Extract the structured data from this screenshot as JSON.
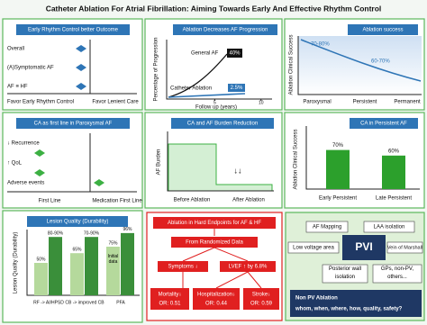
{
  "title": "Catheter Ablation For Atrial Fibrillation: Aiming Towards Early And Effective Rhythm Control",
  "early_rhythm": {
    "title": "Early Rhythm Control better Outcome",
    "rows": [
      "Overall",
      "(A)Symptomatic AF",
      "AF ≡ HF"
    ],
    "left": "Favor Early Rhythm Control",
    "right": "Favor Lenient Care"
  },
  "progression": {
    "title": "Ablation Decreases AF Progression",
    "ylabel": "Percentage of Progression",
    "xlabel": "Follow up (years)",
    "xticks": [
      5,
      10
    ],
    "xlim": [
      0,
      11
    ],
    "general": {
      "name": "General AF",
      "label": "40%"
    },
    "ablation": {
      "name": "Catheter Ablation",
      "label": "2.5%"
    }
  },
  "success": {
    "title": "Ablation success",
    "ylabel": "Ablation Clinical Success",
    "labels": [
      "70-80%",
      "60-70%"
    ],
    "categories": [
      "Paroxysmal",
      "Persistent",
      "Permanent"
    ]
  },
  "first_line": {
    "title": "CA as first line in Paroxysmal AF",
    "rows": [
      "↓ Recurrence",
      "↑ QoL",
      "Adverse events"
    ],
    "left": "First Line",
    "right": "Medication First Line"
  },
  "burden": {
    "title": "CA and AF Burden Reduction",
    "ylabel": "AF Burden",
    "note": "↓↓",
    "categories": [
      "Before Ablation",
      "After Ablation"
    ]
  },
  "persistent": {
    "title": "CA in Persistent AF",
    "ylabel": "Ablation Clinical Success",
    "ylim": [
      0,
      100
    ],
    "categories": [
      "Early Persistent",
      "Late Persistent"
    ],
    "values": [
      70,
      60
    ],
    "value_labels": [
      "70%",
      "60%"
    ]
  },
  "lesion": {
    "title": "Lesion Quality (Durability)",
    "ylabel": "Lesion Quality (Durability)",
    "ylim": [
      0,
      100
    ],
    "note": "Initial data",
    "categories": [
      "RF -> AI/HPSD",
      "CB -> improved CB",
      "PFA"
    ],
    "before": {
      "values": [
        50,
        65,
        75
      ],
      "value_labels": [
        "50%",
        "65%",
        "75%"
      ]
    },
    "after": {
      "low": [
        80,
        70,
        null
      ],
      "values": [
        90,
        90,
        96
      ],
      "value_labels": [
        "80-90%",
        "70-90%",
        "96%"
      ]
    }
  },
  "endpoints": {
    "title": "Ablation in Hard Endpoints for AF & HF",
    "source": "From Randomized Data",
    "effects": [
      "Symptoms ↓",
      "LVEF ↑ by 6.8%"
    ],
    "outcomes": [
      {
        "name": "Mortality↓",
        "or": "OR: 0.51"
      },
      {
        "name": "Hospitalization↓",
        "or": "OR: 0.44"
      },
      {
        "name": "Stroke↓",
        "or": "OR: 0.59"
      }
    ]
  },
  "targets": {
    "items": [
      "AF Mapping",
      "LAA isolation",
      "Low voltage area",
      "PVI",
      "Vein of Marshall",
      "Posterior wall isolation",
      "GPs, non-PV, others..."
    ],
    "footer": "Non PV Ablation",
    "question": "whom, when, where, how, quality, safety?"
  }
}
